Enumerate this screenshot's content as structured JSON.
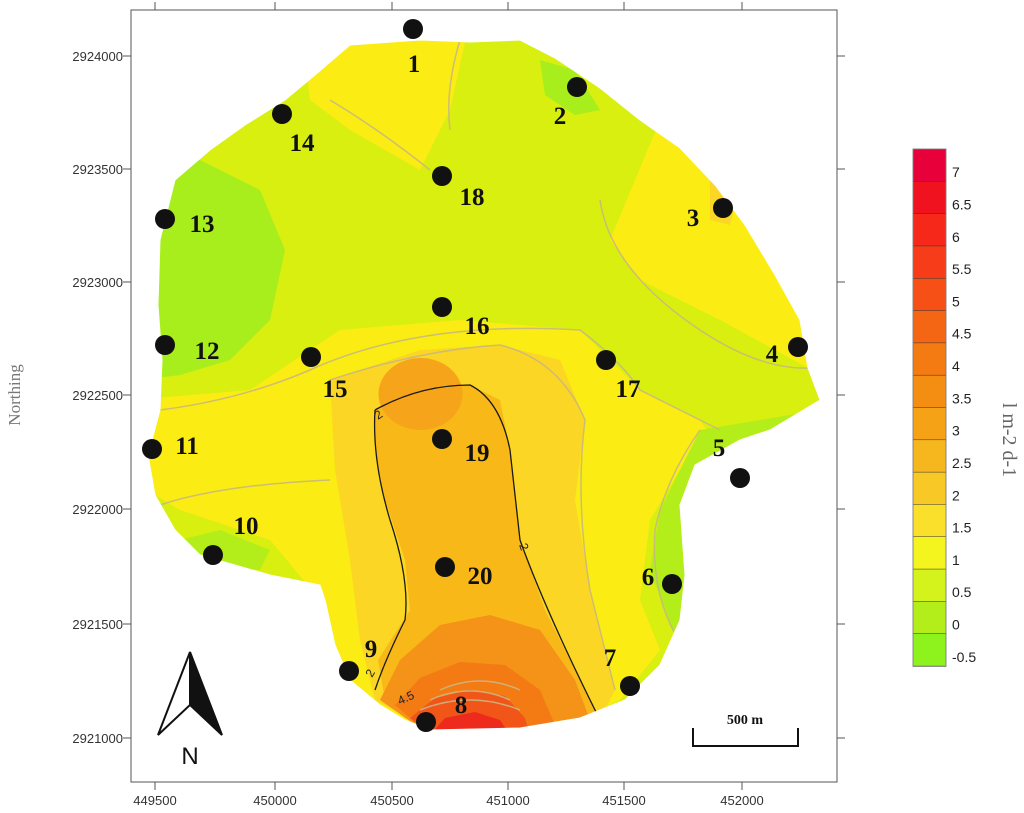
{
  "axes": {
    "ylabel": "Northing",
    "x_ticks": [
      "449500",
      "450000",
      "450500",
      "451000",
      "451500",
      "452000"
    ],
    "y_ticks": [
      "2924000",
      "2923500",
      "2923000",
      "2922500",
      "2922000",
      "2921500",
      "2921000"
    ]
  },
  "legend": {
    "unit": "l m-2 d-1",
    "levels": [
      "7",
      "6.5",
      "6",
      "5.5",
      "5",
      "4.5",
      "4",
      "3.5",
      "3",
      "2.5",
      "2",
      "1.5",
      "1",
      "0.5",
      "0",
      "-0.5"
    ],
    "colors": [
      "#e8003a",
      "#f0121e",
      "#f5281a",
      "#f63c18",
      "#f65016",
      "#f56614",
      "#f47a12",
      "#f48e12",
      "#f5a216",
      "#f6b61e",
      "#f8c826",
      "#fae02a",
      "#f4f41e",
      "#d4f21c",
      "#b4ee1a",
      "#8ef21c"
    ]
  },
  "contour_labels": [
    "2",
    "2",
    "2",
    "4.5"
  ],
  "sites": [
    {
      "label": "1"
    },
    {
      "label": "2"
    },
    {
      "label": "3"
    },
    {
      "label": "4"
    },
    {
      "label": "5"
    },
    {
      "label": "6"
    },
    {
      "label": "7"
    },
    {
      "label": "8"
    },
    {
      "label": "9"
    },
    {
      "label": "10"
    },
    {
      "label": "11"
    },
    {
      "label": "12"
    },
    {
      "label": "13"
    },
    {
      "label": "14"
    },
    {
      "label": "15"
    },
    {
      "label": "16"
    },
    {
      "label": "17"
    },
    {
      "label": "18"
    },
    {
      "label": "19"
    },
    {
      "label": "20"
    }
  ],
  "scale_bar": {
    "label": "500 m"
  },
  "north_arrow": {
    "label": "N"
  }
}
